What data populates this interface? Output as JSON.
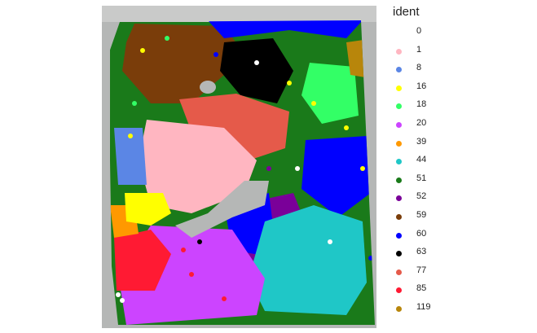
{
  "legend": {
    "title": "ident",
    "items": [
      {
        "label": "0",
        "color": "#ffffff"
      },
      {
        "label": "1",
        "color": "#ffb6c1"
      },
      {
        "label": "8",
        "color": "#5b86e5"
      },
      {
        "label": "16",
        "color": "#ffff00"
      },
      {
        "label": "18",
        "color": "#33ff66"
      },
      {
        "label": "20",
        "color": "#cc44ff"
      },
      {
        "label": "39",
        "color": "#ff9900"
      },
      {
        "label": "44",
        "color": "#1fc7c7"
      },
      {
        "label": "51",
        "color": "#1a7a1a"
      },
      {
        "label": "52",
        "color": "#7a0099"
      },
      {
        "label": "59",
        "color": "#7a3d0a"
      },
      {
        "label": "60",
        "color": "#0000ff"
      },
      {
        "label": "63",
        "color": "#000000"
      },
      {
        "label": "77",
        "color": "#e55a4a"
      },
      {
        "label": "85",
        "color": "#ff1a33"
      },
      {
        "label": "119",
        "color": "#b8860b"
      }
    ]
  }
}
